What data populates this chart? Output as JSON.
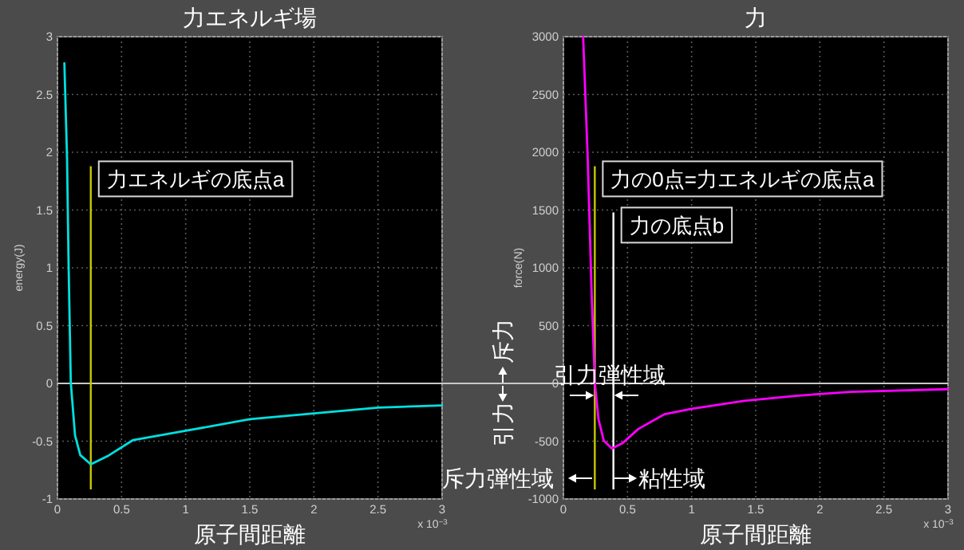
{
  "chart_data": [
    {
      "type": "line",
      "title": "力エネルギ場",
      "xlabel": "原子間距離",
      "ylabel": "energy(J)",
      "xlim": [
        0,
        3
      ],
      "xticks": [
        0,
        0.5,
        1,
        1.5,
        2,
        2.5,
        3
      ],
      "ylim": [
        -1,
        3
      ],
      "yticks": [
        -1,
        -0.5,
        0,
        0.5,
        1,
        1.5,
        2,
        2.5,
        3
      ],
      "grid": true,
      "marker": "none",
      "line_style": "solid",
      "series": [
        {
          "color": "#00e0e0",
          "x": [
            0.054,
            0.075,
            0.087,
            0.104,
            0.137,
            0.178,
            0.26,
            0.39,
            0.59,
            1.0,
            1.5,
            2.0,
            2.5,
            3.0
          ],
          "values": [
            2.77,
            1.94,
            1.02,
            0.01,
            -0.45,
            -0.62,
            -0.7,
            -0.63,
            -0.49,
            -0.41,
            -0.31,
            -0.26,
            -0.21,
            -0.19
          ]
        }
      ],
      "ref_lines": [
        {
          "axis": "y",
          "value": 0,
          "color": "#c8c8c8"
        },
        {
          "axis": "x",
          "value": 0.26,
          "label": "力エネルギの底点a",
          "color": "#c8c800"
        }
      ],
      "annotations": [
        "x 10$^{−3}$"
      ]
    },
    {
      "type": "line",
      "title": "力",
      "xlabel": "原子間距離",
      "ylabel": "force(N)",
      "xlim": [
        0,
        3
      ],
      "xticks": [
        0,
        0.5,
        1,
        1.5,
        2,
        2.5,
        3
      ],
      "ylim": [
        -1000,
        3000
      ],
      "yticks": [
        -1000,
        -500,
        0,
        500,
        1000,
        1500,
        2000,
        2500,
        3000
      ],
      "grid": true,
      "marker": "none",
      "line_style": "solid",
      "series": [
        {
          "color": "#ff00ff",
          "x": [
            0.154,
            0.19,
            0.22,
            0.245,
            0.274,
            0.315,
            0.378,
            0.46,
            0.585,
            0.79,
            1.0,
            1.41,
            1.83,
            2.24,
            3.0
          ],
          "values": [
            3000,
            1936,
            789,
            9,
            -312,
            -495,
            -564,
            -518,
            -394,
            -266,
            -220,
            -151,
            -106,
            -73,
            -50
          ]
        }
      ],
      "ref_lines": [
        {
          "axis": "y",
          "value": 0,
          "color": "#c8c8c8"
        },
        {
          "axis": "x",
          "value": 0.245,
          "label": "力の0点=力エネルギの底点a",
          "color": "#c8c800"
        },
        {
          "axis": "x",
          "value": 0.39,
          "label": "力の底点b",
          "color": "#ffffff"
        }
      ],
      "annotations": [
        "x 10$^{−3}$",
        "引力弾性域",
        "斥力弾性域",
        "粘性域",
        "斥力",
        "引力"
      ]
    }
  ]
}
